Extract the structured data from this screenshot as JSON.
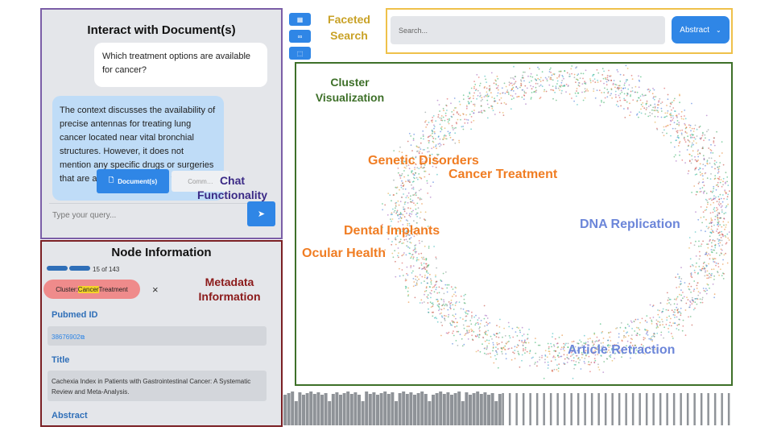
{
  "chat": {
    "title": "Interact with Document(s)",
    "user_message": "Which treatment options are available for cancer?",
    "bot_message": "The context discusses the availability of precise antennas for treating lung cancer located near vital bronchial structures. However, it does not mention any specific drugs or surgeries that are available for cancer treatment.",
    "documents_button": "Document(s)",
    "input_placeholder": "Type your query...",
    "send_icon": "paper-plane-icon",
    "annotation_label": "Chat Functionality"
  },
  "node_info": {
    "title": "Node Information",
    "page_count": "15 of 143",
    "cluster_prefix": "Cluster: ",
    "cluster_highlight": "Cancer",
    "cluster_suffix": " Treatment",
    "close": "×",
    "annotation_label": "Metadata Information",
    "pubmed_label": "Pubmed ID",
    "pubmed_value": "38676902",
    "title_label": "Title",
    "title_value": "Cachexia Index in Patients with Gastrointestinal Cancer: A Systematic Review and Meta-Analysis.",
    "abstract_label": "Abstract"
  },
  "search": {
    "annotation_label": "Faceted Search",
    "placeholder": "Search...",
    "field_select": "Abstract",
    "facet_icons": [
      "grid-icon",
      "link-icon",
      "select-icon"
    ]
  },
  "cluster_view": {
    "annotation_label": "Cluster Visualization",
    "clusters": [
      {
        "name": "Genetic Disorders",
        "color": "#f07d23"
      },
      {
        "name": "Cancer Treatment",
        "color": "#f07d23"
      },
      {
        "name": "Dental Implants",
        "color": "#f07d23"
      },
      {
        "name": "Ocular Health",
        "color": "#f07d23"
      },
      {
        "name": "DNA Replication",
        "color": "#6c86d9"
      },
      {
        "name": "Article Retraction",
        "color": "#6c86d9"
      }
    ]
  },
  "colors": {
    "accent": "#2f86e6",
    "chat_border": "#7b5ea7",
    "node_border": "#7a1f24",
    "search_border": "#efc14a",
    "cluster_border": "#3e7029"
  }
}
